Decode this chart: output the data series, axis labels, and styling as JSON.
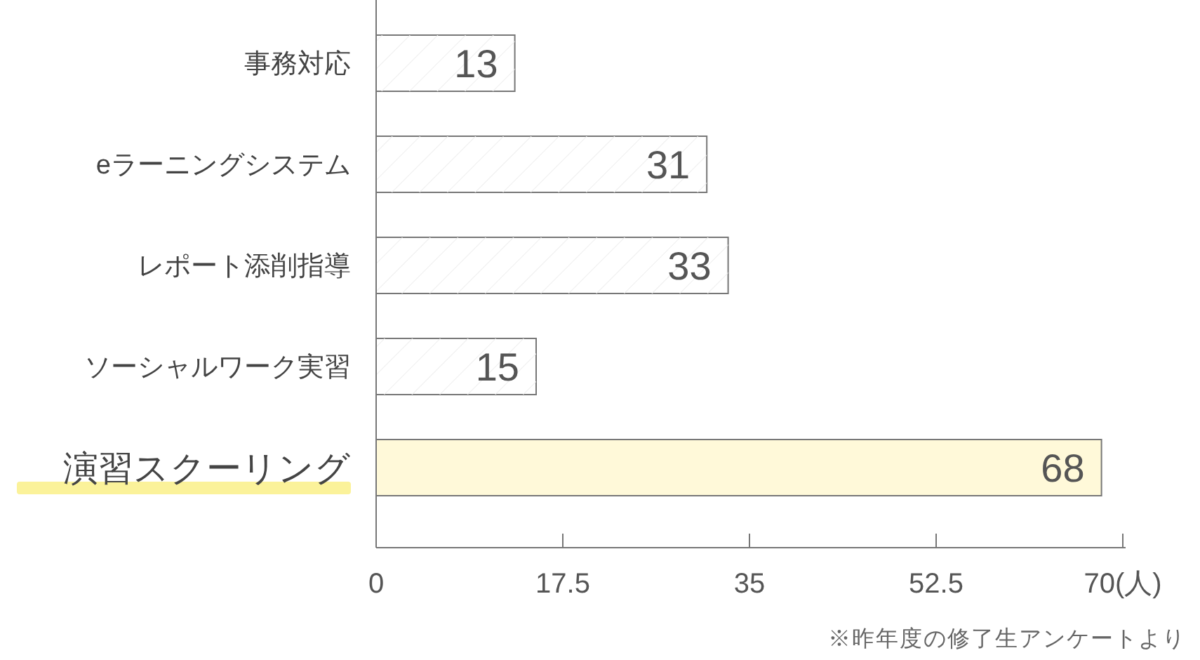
{
  "chart_data": {
    "type": "bar",
    "orientation": "horizontal",
    "categories": [
      "事務対応",
      "eラーニングシステム",
      "レポート添削指導",
      "ソーシャルワーク実習",
      "演習スクーリング"
    ],
    "values": [
      13,
      31,
      33,
      15,
      68
    ],
    "colors": [
      "#ffffff",
      "#ffffff",
      "#ffffff",
      "#ffffff",
      "#fff9d9"
    ],
    "xlim": [
      0,
      70
    ],
    "xticks": [
      0,
      17.5,
      35,
      52.5,
      {
        "value": 70,
        "label": "70(人)"
      }
    ],
    "data_labels": true,
    "grid": false,
    "annotations": [
      "※昨年度の修了生アンケートより"
    ]
  }
}
